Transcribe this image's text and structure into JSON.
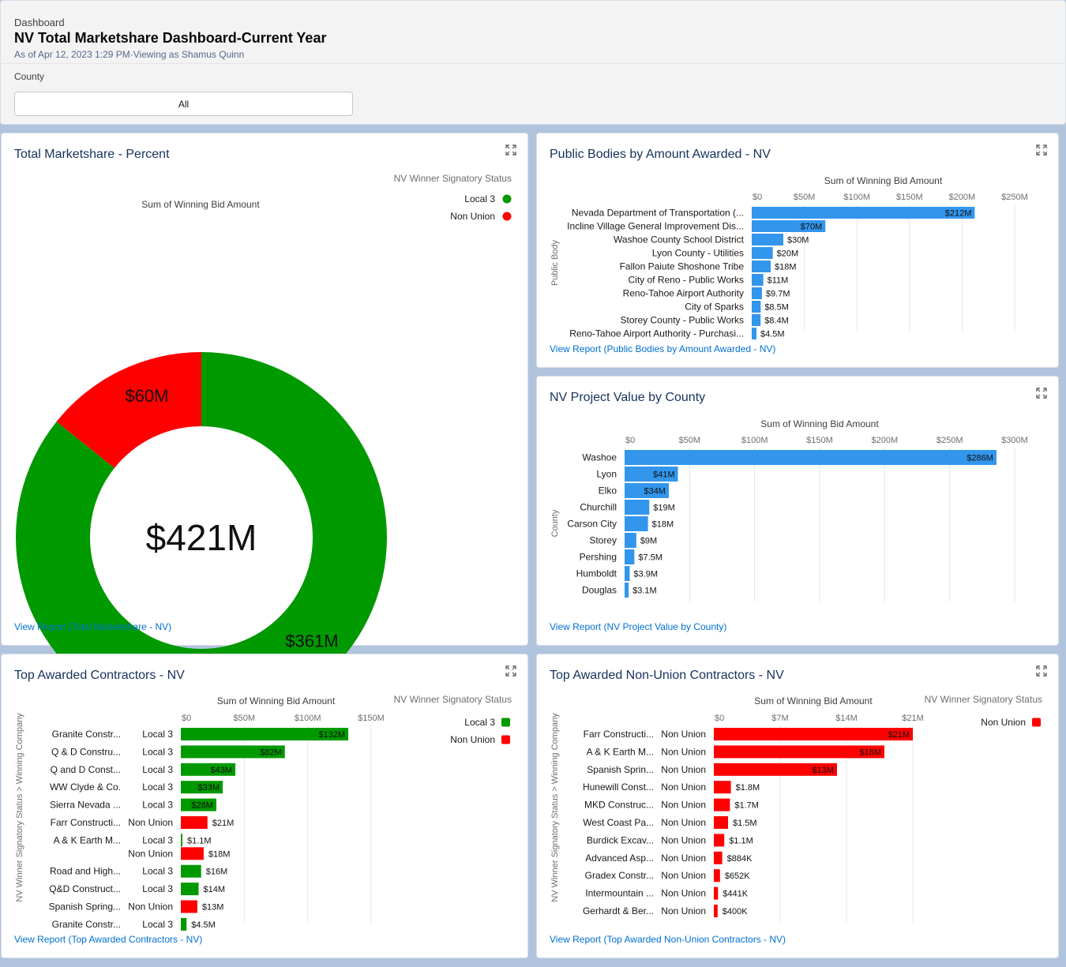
{
  "header": {
    "eyebrow": "Dashboard",
    "title": "NV Total Marketshare Dashboard-Current Year",
    "subtitle": "As of Apr 12, 2023 1:29 PM·Viewing as Shamus Quinn",
    "filter_label": "County",
    "filter_value": "All"
  },
  "colors": {
    "local3": "#009900",
    "nonunion": "#ff0000",
    "bar_blue": "#3296ed",
    "link": "#0070d2",
    "title": "#16325c"
  },
  "icons": {
    "expand": "expand-icon"
  },
  "cards": {
    "marketshare": {
      "title": "Total Marketshare - Percent",
      "link": "View Report (Total Marketshare - NV)"
    },
    "public_bodies": {
      "title": "Public Bodies by Amount Awarded - NV",
      "link": "View Report (Public Bodies by Amount Awarded - NV)"
    },
    "county": {
      "title": "NV Project Value by County",
      "link": "View Report (NV Project Value by County)"
    },
    "contractors": {
      "title": "Top Awarded Contractors - NV",
      "link": "View Report (Top Awarded Contractors - NV)"
    },
    "nonunion": {
      "title": "Top Awarded Non-Union Contractors - NV",
      "link": "View Report (Top Awarded Non-Union Contractors - NV)"
    }
  },
  "chart_data": [
    {
      "id": "marketshare",
      "type": "pie",
      "variant": "donut",
      "subtitle": "Sum of Winning Bid Amount",
      "center_label": "$421M",
      "legend_title": "NV Winner Signatory Status",
      "legend_position": "top-right",
      "slices": [
        {
          "name": "Local 3",
          "value": 361,
          "label": "$361M",
          "color": "#009900"
        },
        {
          "name": "Non Union",
          "value": 60,
          "label": "$60M",
          "color": "#ff0000"
        }
      ]
    },
    {
      "id": "public_bodies",
      "type": "bar",
      "orientation": "horizontal",
      "xlabel": "Sum of Winning Bid Amount",
      "ylabel": "Public Body",
      "xlim": [
        0,
        250
      ],
      "ticks": [
        "$0",
        "$50M",
        "$100M",
        "$150M",
        "$200M",
        "$250M"
      ],
      "categories": [
        "Nevada Department of Transportation (...",
        "Incline Village General Improvement Dis...",
        "Washoe County School District",
        "Lyon County - Utilities",
        "Fallon Paiute Shoshone Tribe",
        "City of Reno - Public Works",
        "Reno-Tahoe Airport Authority",
        "City of Sparks",
        "Storey County - Public Works",
        "Reno-Tahoe Airport Authority - Purchasi..."
      ],
      "values": [
        212,
        70,
        30,
        20,
        18,
        11,
        9.7,
        8.5,
        8.4,
        4.5
      ],
      "labels": [
        "$212M",
        "$70M",
        "$30M",
        "$20M",
        "$18M",
        "$11M",
        "$9.7M",
        "$8.5M",
        "$8.4M",
        "$4.5M"
      ]
    },
    {
      "id": "county",
      "type": "bar",
      "orientation": "horizontal",
      "xlabel": "Sum of Winning Bid Amount",
      "ylabel": "County",
      "xlim": [
        0,
        300
      ],
      "ticks": [
        "$0",
        "$50M",
        "$100M",
        "$150M",
        "$200M",
        "$250M",
        "$300M"
      ],
      "categories": [
        "Washoe",
        "Lyon",
        "Elko",
        "Churchill",
        "Carson City",
        "Storey",
        "Pershing",
        "Humboldt",
        "Douglas"
      ],
      "values": [
        286,
        41,
        34,
        19,
        18,
        9,
        7.5,
        3.9,
        3.1
      ],
      "labels": [
        "$286M",
        "$41M",
        "$34M",
        "$19M",
        "$18M",
        "$9M",
        "$7.5M",
        "$3.9M",
        "$3.1M"
      ]
    },
    {
      "id": "contractors",
      "type": "bar",
      "orientation": "horizontal",
      "xlabel": "Sum of Winning Bid Amount",
      "ylabel": "NV Winner Signatory Status > Winning Company",
      "legend_title": "NV Winner Signatory Status",
      "legend_position": "top-right",
      "legend": [
        {
          "name": "Local 3",
          "color": "#009900"
        },
        {
          "name": "Non Union",
          "color": "#ff0000"
        }
      ],
      "xlim": [
        0,
        150
      ],
      "ticks": [
        "$0",
        "$50M",
        "$100M",
        "$150M"
      ],
      "rows": [
        {
          "company": "Granite Constr...",
          "status": "Local 3",
          "value": 132,
          "label": "$132M"
        },
        {
          "company": "Q & D Constru...",
          "status": "Local 3",
          "value": 82,
          "label": "$82M"
        },
        {
          "company": "Q and D Const...",
          "status": "Local 3",
          "value": 43,
          "label": "$43M"
        },
        {
          "company": "WW Clyde & Co.",
          "status": "Local 3",
          "value": 33,
          "label": "$33M"
        },
        {
          "company": "Sierra Nevada ...",
          "status": "Local 3",
          "value": 28,
          "label": "$28M"
        },
        {
          "company": "Farr Constructi...",
          "status": "Non Union",
          "value": 21,
          "label": "$21M"
        },
        {
          "company": "A & K Earth M...",
          "status": "Local 3",
          "value": 1.1,
          "label": "$1.1M"
        },
        {
          "company": "",
          "status": "Non Union",
          "value": 18,
          "label": "$18M"
        },
        {
          "company": "Road and High...",
          "status": "Local 3",
          "value": 16,
          "label": "$16M"
        },
        {
          "company": "Q&D Construct...",
          "status": "Local 3",
          "value": 14,
          "label": "$14M"
        },
        {
          "company": "Spanish Spring...",
          "status": "Non Union",
          "value": 13,
          "label": "$13M"
        },
        {
          "company": "Granite Constr...",
          "status": "Local 3",
          "value": 4.5,
          "label": "$4.5M"
        }
      ]
    },
    {
      "id": "nonunion",
      "type": "bar",
      "orientation": "horizontal",
      "xlabel": "Sum of Winning Bid Amount",
      "ylabel": "NV Winner Signatory Status > Winning Company",
      "legend_title": "NV Winner Signatory Status",
      "legend_position": "top-right",
      "legend": [
        {
          "name": "Non Union",
          "color": "#ff0000"
        }
      ],
      "xlim": [
        0,
        21
      ],
      "ticks": [
        "$0",
        "$7M",
        "$14M",
        "$21M"
      ],
      "rows": [
        {
          "company": "Farr Constructi...",
          "status": "Non Union",
          "value": 21,
          "label": "$21M"
        },
        {
          "company": "A & K Earth M...",
          "status": "Non Union",
          "value": 18,
          "label": "$18M"
        },
        {
          "company": "Spanish Sprin...",
          "status": "Non Union",
          "value": 13,
          "label": "$13M"
        },
        {
          "company": "Hunewill Const...",
          "status": "Non Union",
          "value": 1.8,
          "label": "$1.8M"
        },
        {
          "company": "MKD Construc...",
          "status": "Non Union",
          "value": 1.7,
          "label": "$1.7M"
        },
        {
          "company": "West Coast Pa...",
          "status": "Non Union",
          "value": 1.5,
          "label": "$1.5M"
        },
        {
          "company": "Burdick Excav...",
          "status": "Non Union",
          "value": 1.1,
          "label": "$1.1M"
        },
        {
          "company": "Advanced Asp...",
          "status": "Non Union",
          "value": 0.884,
          "label": "$884K"
        },
        {
          "company": "Gradex Constr...",
          "status": "Non Union",
          "value": 0.652,
          "label": "$652K"
        },
        {
          "company": "Intermountain ...",
          "status": "Non Union",
          "value": 0.441,
          "label": "$441K"
        },
        {
          "company": "Gerhardt & Ber...",
          "status": "Non Union",
          "value": 0.4,
          "label": "$400K"
        }
      ]
    }
  ]
}
